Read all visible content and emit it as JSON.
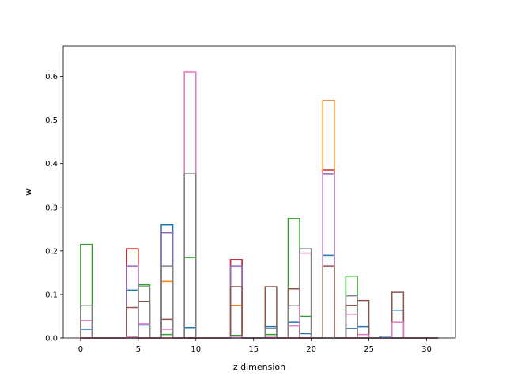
{
  "chart_data": {
    "type": "step-histogram",
    "xlabel": "z dimension",
    "ylabel": "w",
    "xlim": [
      -1.5,
      32.5
    ],
    "ylim": [
      0,
      0.67
    ],
    "xticks": [
      0,
      5,
      10,
      15,
      20,
      25,
      30
    ],
    "yticks": [
      0.0,
      0.1,
      0.2,
      0.3,
      0.4,
      0.5,
      0.6
    ],
    "bin_edges": [
      0,
      1,
      2,
      3,
      4,
      5,
      6,
      7,
      8,
      9,
      10,
      11,
      12,
      13,
      14,
      15,
      16,
      17,
      18,
      19,
      20,
      21,
      22,
      23,
      24,
      25,
      26,
      27,
      28,
      29,
      30,
      31
    ],
    "series": [
      {
        "color": "#1f77b4",
        "values": [
          0.02,
          0,
          0,
          0,
          0.11,
          0.03,
          0,
          0.26,
          0,
          0.024,
          0,
          0,
          0,
          0.18,
          0,
          0,
          0.026,
          0,
          0.036,
          0.01,
          0,
          0.19,
          0,
          0.022,
          0.026,
          0,
          0.004,
          0.064,
          0,
          0,
          0
        ]
      },
      {
        "color": "#ff7f0e",
        "values": [
          0,
          0,
          0,
          0,
          0.205,
          0,
          0,
          0.13,
          0,
          0,
          0,
          0,
          0,
          0.075,
          0,
          0,
          0,
          0,
          0,
          0,
          0,
          0.545,
          0,
          0,
          0,
          0,
          0,
          0,
          0,
          0,
          0
        ]
      },
      {
        "color": "#2ca02c",
        "values": [
          0.215,
          0,
          0,
          0,
          0,
          0.122,
          0,
          0.008,
          0,
          0.185,
          0,
          0,
          0,
          0.006,
          0,
          0,
          0.008,
          0,
          0.274,
          0.05,
          0,
          0,
          0,
          0.142,
          0,
          0,
          0,
          0,
          0,
          0,
          0
        ]
      },
      {
        "color": "#d62728",
        "values": [
          0,
          0,
          0,
          0,
          0.205,
          0,
          0,
          0,
          0,
          0,
          0,
          0,
          0,
          0.18,
          0,
          0,
          0,
          0,
          0,
          0,
          0,
          0.385,
          0,
          0,
          0,
          0,
          0,
          0,
          0,
          0,
          0
        ]
      },
      {
        "color": "#9467bd",
        "values": [
          0,
          0,
          0,
          0,
          0.165,
          0,
          0,
          0.242,
          0,
          0,
          0,
          0,
          0,
          0.165,
          0,
          0,
          0,
          0,
          0,
          0,
          0,
          0.376,
          0,
          0,
          0,
          0,
          0,
          0,
          0,
          0,
          0
        ]
      },
      {
        "color": "#8c564b",
        "values": [
          0.04,
          0,
          0,
          0,
          0.07,
          0.084,
          0,
          0.043,
          0,
          0,
          0,
          0,
          0,
          0.118,
          0,
          0,
          0.118,
          0,
          0.113,
          0,
          0,
          0.165,
          0,
          0.075,
          0.086,
          0,
          0,
          0.105,
          0,
          0,
          0
        ]
      },
      {
        "color": "#e377c2",
        "values": [
          0.04,
          0,
          0,
          0,
          0.003,
          0.033,
          0,
          0.02,
          0,
          0.61,
          0,
          0,
          0,
          0.004,
          0,
          0,
          0.004,
          0,
          0.028,
          0.195,
          0,
          0,
          0,
          0.055,
          0.008,
          0,
          0,
          0.036,
          0,
          0,
          0
        ]
      },
      {
        "color": "#7f7f7f",
        "values": [
          0.074,
          0,
          0,
          0,
          0,
          0.118,
          0,
          0.165,
          0,
          0.378,
          0,
          0,
          0,
          0,
          0,
          0,
          0.022,
          0,
          0.074,
          0.205,
          0,
          0,
          0,
          0.097,
          0,
          0,
          0,
          0,
          0,
          0,
          0
        ]
      }
    ]
  }
}
